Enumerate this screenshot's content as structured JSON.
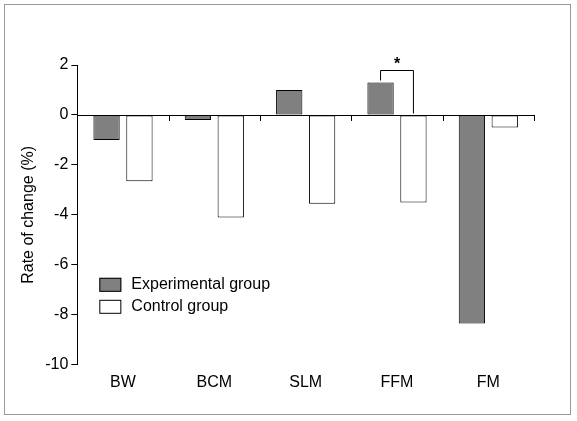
{
  "chart_data": {
    "type": "bar",
    "y_label": "Rate of change (%)",
    "categories": [
      "BW",
      "BCM",
      "SLM",
      "FFM",
      "FM"
    ],
    "series": [
      {
        "name": "Experimental group",
        "color": "#808080",
        "values": [
          -1.0,
          -0.2,
          1.0,
          1.3,
          -8.35
        ]
      },
      {
        "name": "Control group",
        "color": "#ffffff",
        "values": [
          -2.65,
          -4.1,
          -3.55,
          -3.5,
          -0.5
        ]
      }
    ],
    "ylim": [
      -10,
      2
    ],
    "yticks": [
      -10,
      -8,
      -6,
      -4,
      -2,
      0,
      2
    ],
    "grid": false,
    "legend": "lower left",
    "annotations": [
      {
        "text": "*",
        "category": "FFM"
      }
    ]
  }
}
